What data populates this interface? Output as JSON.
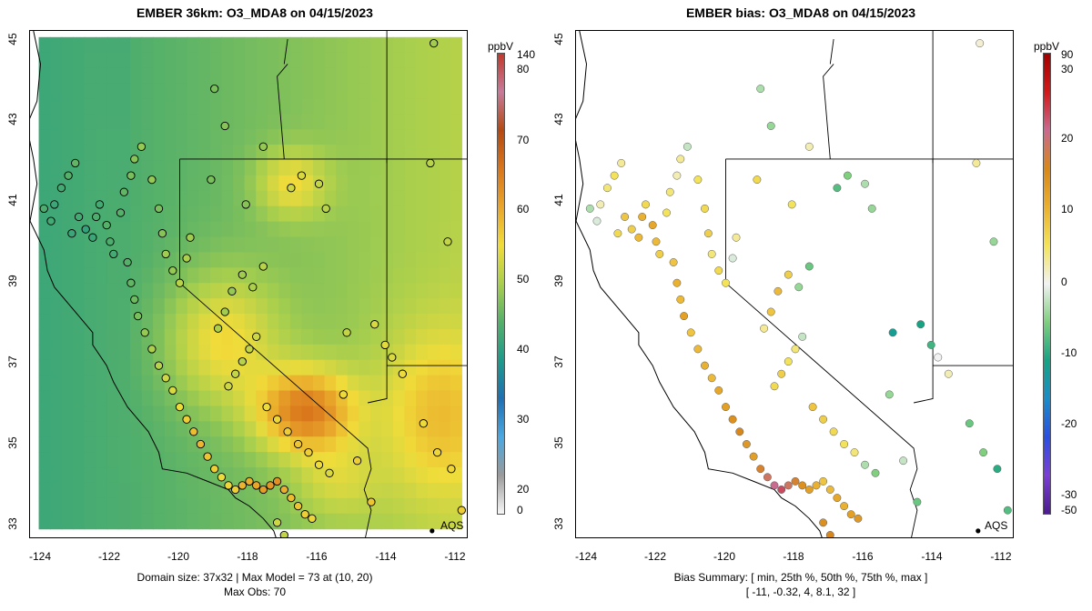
{
  "left": {
    "title": "EMBER 36km: O3_MDA8 on 04/15/2023",
    "footer_line1": "Domain size: 37x32 | Max Model = 73 at (10, 20)",
    "footer_line2": "Max Obs: 70",
    "colorbar_unit": "ppbV",
    "colorbar_ticks": [
      "140",
      "80",
      "70",
      "60",
      "50",
      "40",
      "30",
      "20",
      "0"
    ],
    "aqs_label": "AQS"
  },
  "right": {
    "title": "EMBER bias: O3_MDA8 on 04/15/2023",
    "footer_line1": "Bias Summary: [ min, 25th %, 50th %, 75th %, max ]",
    "footer_line2": "[ -11,  -0.32,  4,  8.1,  32 ]",
    "colorbar_unit": "ppbV",
    "colorbar_ticks": [
      "90",
      "30",
      "20",
      "10",
      "0",
      "-10",
      "-20",
      "-30",
      "-50"
    ],
    "aqs_label": "AQS"
  },
  "axes": {
    "x_ticks": [
      "-124",
      "-122",
      "-120",
      "-118",
      "-116",
      "-114",
      "-112"
    ],
    "y_ticks": [
      "45",
      "43",
      "41",
      "39",
      "37",
      "35",
      "33"
    ],
    "x_range": [
      -124.3,
      -111.7
    ],
    "y_range": [
      32.8,
      45.1
    ]
  },
  "colors": {
    "model_scale": [
      "#f7f7f7",
      "#9a9a9a",
      "#4aa8e0",
      "#1f6fb3",
      "#1e9a8a",
      "#54b06a",
      "#a9cf4d",
      "#f0dc3a",
      "#e9a52a",
      "#d9751c",
      "#b44a12",
      "#c77a9a",
      "#c0392b"
    ],
    "bias_scale": [
      "#4b1d8f",
      "#7b3fd4",
      "#2b4fe0",
      "#1b8cc7",
      "#17a283",
      "#7fcf7f",
      "#f2f2f2",
      "#f3e35a",
      "#eab030",
      "#d8881a",
      "#c96a8f",
      "#d11a1a",
      "#a30000"
    ]
  }
}
